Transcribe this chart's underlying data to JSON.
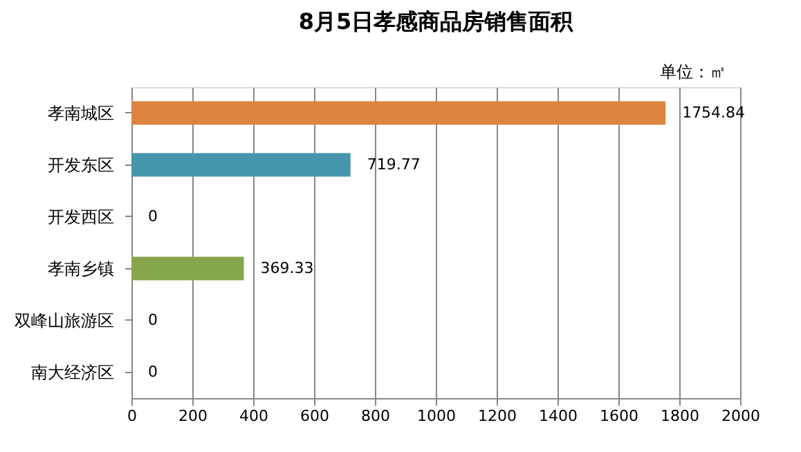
{
  "chart_data": {
    "type": "bar",
    "orientation": "horizontal",
    "title": "8月5日孝感商品房销售面积",
    "annotations": [
      "单位：㎡"
    ],
    "categories": [
      "孝南城区",
      "开发东区",
      "开发西区",
      "孝南乡镇",
      "双峰山旅游区",
      "南大经济区"
    ],
    "values": [
      1754.84,
      719.77,
      0,
      369.33,
      0,
      0
    ],
    "colors": [
      "#dd8440",
      "#4597ad",
      "#4597ad",
      "#87a54b",
      "#87a54b",
      "#87a54b"
    ],
    "xlim": [
      0,
      2000
    ],
    "xticks": [
      0,
      200,
      400,
      600,
      800,
      1000,
      1200,
      1400,
      1600,
      1800,
      2000
    ],
    "grid": "x",
    "data_labels": true
  }
}
